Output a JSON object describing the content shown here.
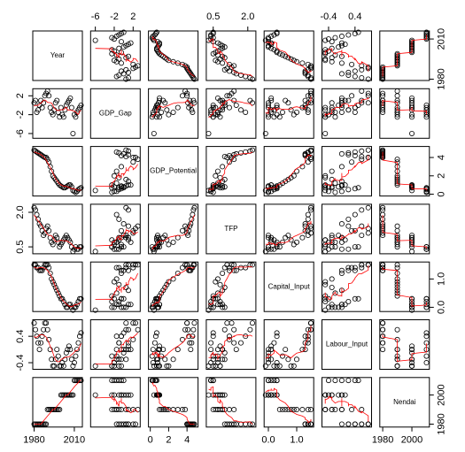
{
  "chart_data": {
    "type": "scatter-matrix",
    "point_color": "#000000",
    "smooth_color": "#ff0000",
    "variables": [
      {
        "name": "Year",
        "lim": [
          1979,
          2016
        ],
        "ticks": [
          1980,
          2010
        ],
        "values": [
          1980,
          1981,
          1982,
          1983,
          1984,
          1985,
          1986,
          1987,
          1988,
          1989,
          1990,
          1991,
          1992,
          1993,
          1994,
          1995,
          1996,
          1997,
          1998,
          1999,
          2000,
          2001,
          2002,
          2003,
          2004,
          2005,
          2006,
          2007,
          2008,
          2009,
          2010,
          2011,
          2012,
          2013,
          2014,
          2015
        ]
      },
      {
        "name": "GDP_Gap",
        "lim": [
          -7,
          3.5
        ],
        "ticks": [
          -6,
          -2,
          2
        ],
        "values": [
          0.5,
          1.0,
          -1.5,
          -1.0,
          0.0,
          1.0,
          -0.5,
          0.5,
          2.0,
          2.5,
          3.0,
          2.0,
          -0.5,
          -1.5,
          -2.0,
          -1.0,
          0.5,
          1.0,
          -1.5,
          -2.5,
          -0.5,
          -2.0,
          -2.5,
          -1.0,
          0.0,
          0.5,
          1.0,
          1.5,
          -0.5,
          -6.0,
          -2.0,
          -2.5,
          -1.5,
          -1.0,
          -0.5,
          0.0
        ]
      },
      {
        "name": "GDP_Potential",
        "lim": [
          -0.2,
          5.2
        ],
        "ticks": [
          0,
          2,
          4
        ],
        "values": [
          4.8,
          4.7,
          4.6,
          4.5,
          4.4,
          4.3,
          4.2,
          4.1,
          4.0,
          4.0,
          3.8,
          3.5,
          3.0,
          2.5,
          2.0,
          1.8,
          1.6,
          1.4,
          1.2,
          1.0,
          0.9,
          0.8,
          0.7,
          0.7,
          0.8,
          0.9,
          1.0,
          1.0,
          0.8,
          0.4,
          0.3,
          0.2,
          0.3,
          0.5,
          0.6,
          0.7
        ]
      },
      {
        "name": "TFP",
        "lim": [
          0.2,
          2.35
        ],
        "ticks": [
          0.5,
          {
            "value": 2,
            "label": "2.0"
          }
        ],
        "values": [
          2.2,
          2.1,
          1.9,
          1.7,
          1.5,
          1.4,
          1.2,
          1.0,
          1.1,
          1.3,
          1.4,
          1.2,
          0.9,
          0.7,
          0.6,
          0.8,
          1.0,
          0.9,
          0.7,
          0.5,
          0.6,
          0.7,
          0.8,
          0.9,
          1.0,
          0.9,
          0.8,
          0.7,
          0.5,
          0.3,
          0.4,
          0.5,
          0.4,
          0.4,
          0.5,
          0.5
        ]
      },
      {
        "name": "Capital_Input",
        "lim": [
          -0.15,
          1.6
        ],
        "ticks": [
          {
            "value": 0,
            "label": "0.0"
          },
          {
            "value": 1,
            "label": "1.0"
          }
        ],
        "values": [
          1.5,
          1.5,
          1.4,
          1.4,
          1.3,
          1.3,
          1.3,
          1.4,
          1.5,
          1.5,
          1.5,
          1.4,
          1.2,
          1.0,
          0.9,
          0.8,
          0.7,
          0.6,
          0.5,
          0.4,
          0.3,
          0.3,
          0.2,
          0.1,
          0.0,
          0.0,
          0.1,
          0.1,
          0.0,
          -0.1,
          0.0,
          0.0,
          0.1,
          0.2,
          0.3,
          0.3
        ]
      },
      {
        "name": "Labour_Input",
        "lim": [
          -0.6,
          0.9
        ],
        "ticks": [
          -0.4,
          0.4
        ],
        "values": [
          0.8,
          0.6,
          0.4,
          0.2,
          0.0,
          0.2,
          0.4,
          0.6,
          0.8,
          0.8,
          0.6,
          0.3,
          0.0,
          -0.3,
          -0.5,
          -0.5,
          -0.3,
          0.0,
          -0.2,
          -0.5,
          -0.5,
          -0.4,
          -0.5,
          -0.3,
          -0.1,
          0.0,
          0.1,
          0.0,
          -0.3,
          -0.5,
          -0.4,
          -0.2,
          0.0,
          0.2,
          0.4,
          0.5
        ]
      },
      {
        "name": "Nendai",
        "lim": [
          1978,
          2012
        ],
        "ticks": [
          1980,
          2000
        ],
        "values": [
          1980,
          1980,
          1980,
          1980,
          1980,
          1980,
          1980,
          1980,
          1980,
          1980,
          1990,
          1990,
          1990,
          1990,
          1990,
          1990,
          1990,
          1990,
          1990,
          1990,
          2000,
          2000,
          2000,
          2000,
          2000,
          2000,
          2000,
          2000,
          2000,
          2000,
          2010,
          2010,
          2010,
          2010,
          2010,
          2010
        ]
      }
    ]
  }
}
